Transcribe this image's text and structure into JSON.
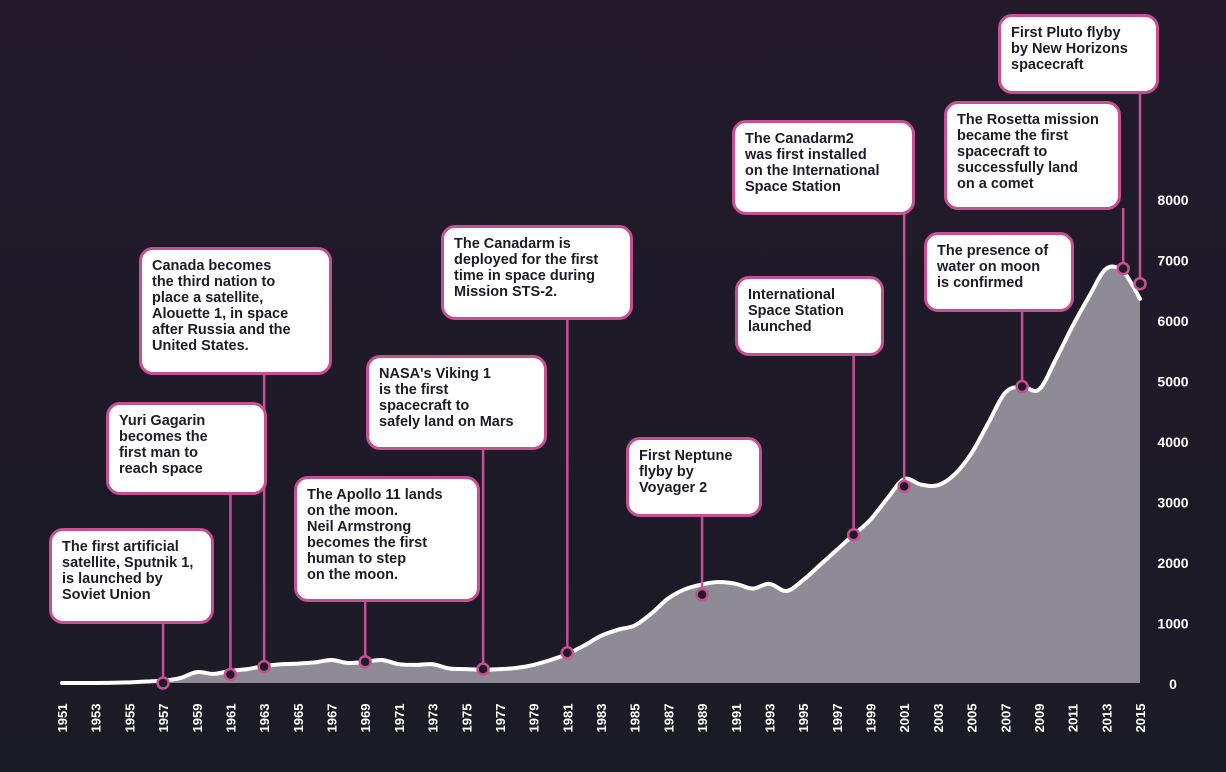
{
  "chart_data": {
    "type": "area",
    "title": "",
    "xlabel": "",
    "ylabel": "",
    "ylim": [
      0,
      8000
    ],
    "xlim": [
      1951,
      2015
    ],
    "yticks": [
      0,
      1000,
      2000,
      3000,
      4000,
      5000,
      6000,
      7000,
      8000
    ],
    "xticks": [
      "1951",
      "1953",
      "1955",
      "1957",
      "1959",
      "1961",
      "1963",
      "1965",
      "1967",
      "1969",
      "1971",
      "1973",
      "1975",
      "1977",
      "1979",
      "1981",
      "1983",
      "1985",
      "1987",
      "1989",
      "1991",
      "1993",
      "1995",
      "1997",
      "1999",
      "2001",
      "2003",
      "2005",
      "2007",
      "2009",
      "2011",
      "2013",
      "2015"
    ],
    "grid": false,
    "legend": "none",
    "colors": {
      "area": "#8e8b97",
      "line": "#ffffff",
      "accent": "#c94f94",
      "marker": "#1e1a28",
      "text": "#ffffff"
    },
    "series": [
      {
        "x": [
          1951,
          1953,
          1955,
          1956,
          1957,
          1958,
          1959,
          1960,
          1961,
          1962,
          1963,
          1964,
          1965,
          1966,
          1967,
          1968,
          1969,
          1970,
          1971,
          1972,
          1973,
          1974,
          1975,
          1976,
          1977,
          1978,
          1979,
          1980,
          1981,
          1982,
          1983,
          1984,
          1985,
          1986,
          1987,
          1988,
          1989,
          1990,
          1991,
          1992,
          1993,
          1994,
          1995,
          1996,
          1997,
          1998,
          1999,
          2000,
          2001,
          2002,
          2003,
          2004,
          2005,
          2006,
          2007,
          2008,
          2009,
          2010,
          2011,
          2012,
          2013,
          2014,
          2015
        ],
        "values": [
          0,
          0,
          10,
          25,
          40,
          80,
          180,
          150,
          200,
          230,
          280,
          310,
          320,
          340,
          380,
          330,
          350,
          380,
          310,
          300,
          310,
          240,
          230,
          220,
          230,
          250,
          300,
          380,
          480,
          620,
          780,
          880,
          950,
          1150,
          1400,
          1550,
          1630,
          1670,
          1640,
          1560,
          1640,
          1520,
          1700,
          1950,
          2200,
          2450,
          2700,
          3050,
          3370,
          3280,
          3270,
          3450,
          3800,
          4300,
          4800,
          4900,
          4850,
          5350,
          5900,
          6400,
          6850,
          6800,
          6350
        ]
      }
    ],
    "annotations": [
      {
        "text": "The first artificial\nsatellite, Sputnik 1,\nis launched by\nSoviet Union",
        "x": 1957,
        "y": 0
      },
      {
        "text": "Yuri Gagarin\nbecomes the\nfirst man to\nreach space",
        "x": 1961,
        "y": 140
      },
      {
        "text": "Canada becomes\nthe third nation to\nplace a satellite,\nAlouette 1, in space\nafter Russia and the\nUnited States.",
        "x": 1963,
        "y": 270
      },
      {
        "text": "The Apollo 11 lands\non the moon.\nNeil Armstrong\nbecomes the first\nhuman to step\non the moon.",
        "x": 1969,
        "y": 350
      },
      {
        "text": "NASA's Viking 1\nis the first\nspacecraft to\nsafely land on Mars",
        "x": 1976,
        "y": 230
      },
      {
        "text": "The Canadarm is\ndeployed for the first\ntime in space during\nMission STS-2.",
        "x": 1981,
        "y": 500
      },
      {
        "text": "First Neptune\nflyby by\nVoyager 2",
        "x": 1989,
        "y": 1460
      },
      {
        "text": "International\nSpace Station\nlaunched",
        "x": 1998,
        "y": 2450
      },
      {
        "text": "The Canadarm2\nwas first installed\non the International\nSpace Station",
        "x": 2001,
        "y": 3250
      },
      {
        "text": "The presence of\nwater on moon\nis confirmed",
        "x": 2008,
        "y": 4900
      },
      {
        "text": "The Rosetta mission\nbecame the first\nspacecraft to\nsuccessfully land\non a comet",
        "x": 2014,
        "y": 6850
      },
      {
        "text": "First Pluto flyby\nby New Horizons\nspacecraft",
        "x": 2015,
        "y": 6600
      }
    ]
  }
}
